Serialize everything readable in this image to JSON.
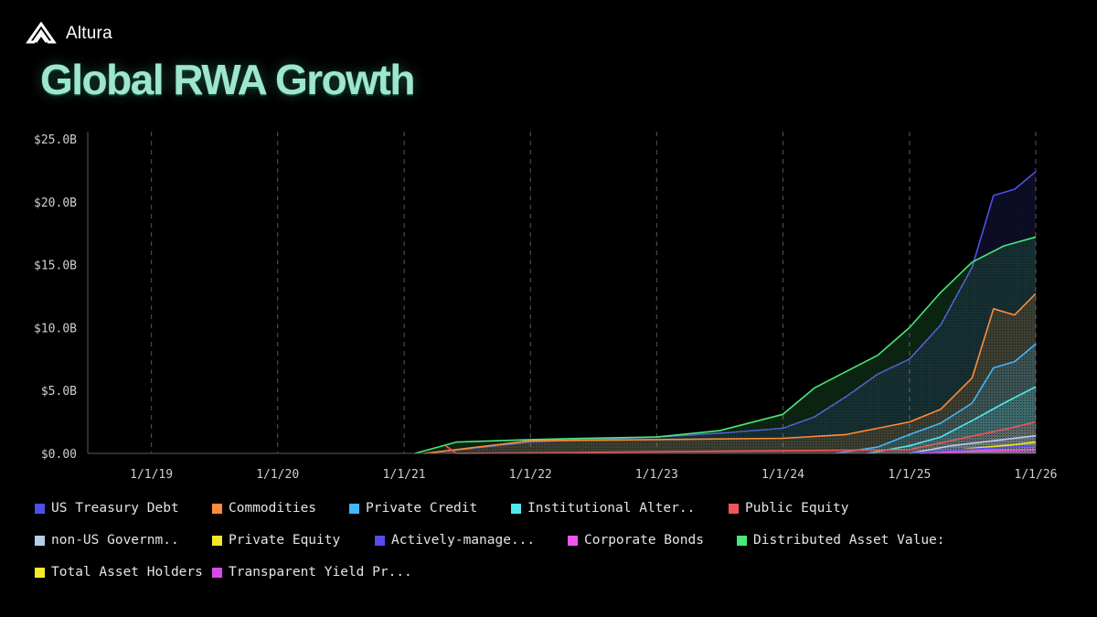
{
  "brand": {
    "name": "Altura",
    "logo_icon": "altura-logo-icon"
  },
  "title": "Global RWA Growth",
  "chart_data": {
    "type": "area",
    "stacked": false,
    "title": "Global RWA Growth",
    "xlabel": "",
    "ylabel": "",
    "x_ticks": [
      "1/1/19",
      "1/1/20",
      "1/1/21",
      "1/1/22",
      "1/1/23",
      "1/1/24",
      "1/1/25",
      "1/1/26"
    ],
    "y_ticks": [
      "$0.00",
      "$5.0B",
      "$10.0B",
      "$15.0B",
      "$20.0B",
      "$25.0B"
    ],
    "ylim": [
      0,
      25
    ],
    "y_unit": "billions USD",
    "xlim": [
      "2018-07-01",
      "2026-01-01"
    ],
    "grid": "vertical dashed",
    "legend_position": "bottom",
    "series": [
      {
        "name": "US Treasury Debt",
        "color": "#4f4fe8",
        "points": [
          [
            "2021-03-01",
            0.0
          ],
          [
            "2022-01-01",
            0.9
          ],
          [
            "2022-06-01",
            1.1
          ],
          [
            "2023-01-01",
            1.3
          ],
          [
            "2023-07-01",
            1.6
          ],
          [
            "2024-01-01",
            2.0
          ],
          [
            "2024-04-01",
            2.9
          ],
          [
            "2024-07-01",
            4.5
          ],
          [
            "2024-10-01",
            6.3
          ],
          [
            "2025-01-01",
            7.5
          ],
          [
            "2025-04-01",
            10.2
          ],
          [
            "2025-07-01",
            14.8
          ],
          [
            "2025-09-01",
            20.5
          ],
          [
            "2025-11-01",
            21.0
          ],
          [
            "2026-01-01",
            22.4
          ]
        ]
      },
      {
        "name": "Commodities",
        "color": "#ff8c3a",
        "points": [
          [
            "2021-03-01",
            0.0
          ],
          [
            "2022-01-01",
            1.0
          ],
          [
            "2023-01-01",
            1.1
          ],
          [
            "2024-01-01",
            1.2
          ],
          [
            "2024-07-01",
            1.5
          ],
          [
            "2025-01-01",
            2.5
          ],
          [
            "2025-04-01",
            3.5
          ],
          [
            "2025-07-01",
            6.0
          ],
          [
            "2025-09-01",
            11.5
          ],
          [
            "2025-11-01",
            11.0
          ],
          [
            "2026-01-01",
            12.7
          ]
        ]
      },
      {
        "name": "Private Credit",
        "color": "#3fb8ff",
        "points": [
          [
            "2024-06-01",
            0.0
          ],
          [
            "2024-10-01",
            0.5
          ],
          [
            "2025-01-01",
            1.5
          ],
          [
            "2025-04-01",
            2.4
          ],
          [
            "2025-07-01",
            4.0
          ],
          [
            "2025-09-01",
            6.8
          ],
          [
            "2025-11-01",
            7.3
          ],
          [
            "2026-01-01",
            8.7
          ]
        ]
      },
      {
        "name": "Institutional Alter..",
        "color": "#52e8f0",
        "points": [
          [
            "2024-09-01",
            0.0
          ],
          [
            "2025-01-01",
            0.6
          ],
          [
            "2025-04-01",
            1.3
          ],
          [
            "2025-07-01",
            2.6
          ],
          [
            "2025-10-01",
            4.0
          ],
          [
            "2026-01-01",
            5.3
          ]
        ]
      },
      {
        "name": "Public Equity",
        "color": "#f0555a",
        "points": [
          [
            "2021-05-01",
            0.6
          ],
          [
            "2021-06-01",
            0.0
          ],
          [
            "2025-01-01",
            0.3
          ],
          [
            "2025-06-01",
            1.2
          ],
          [
            "2025-10-01",
            1.9
          ],
          [
            "2026-01-01",
            2.5
          ]
        ]
      },
      {
        "name": "non-US Governm..",
        "color": "#b4cfe8",
        "points": [
          [
            "2025-01-01",
            0.0
          ],
          [
            "2025-05-01",
            0.6
          ],
          [
            "2025-09-01",
            1.0
          ],
          [
            "2026-01-01",
            1.4
          ]
        ]
      },
      {
        "name": "Private Equity",
        "color": "#f2e626",
        "points": [
          [
            "2025-03-01",
            0.0
          ],
          [
            "2025-07-01",
            0.4
          ],
          [
            "2025-11-01",
            0.7
          ],
          [
            "2026-01-01",
            0.9
          ]
        ]
      },
      {
        "name": "Actively-manage...",
        "color": "#5a4af0",
        "points": [
          [
            "2025-01-01",
            0.0
          ],
          [
            "2025-06-01",
            0.3
          ],
          [
            "2026-01-01",
            0.6
          ]
        ]
      },
      {
        "name": "Corporate Bonds",
        "color": "#ee55ee",
        "points": [
          [
            "2025-02-01",
            0.0
          ],
          [
            "2025-08-01",
            0.2
          ],
          [
            "2026-01-01",
            0.3
          ]
        ]
      },
      {
        "name": "Distributed Asset Value:",
        "color": "#48e878",
        "points": [
          [
            "2021-02-01",
            0.0
          ],
          [
            "2021-06-01",
            0.9
          ],
          [
            "2022-01-01",
            1.1
          ],
          [
            "2022-06-01",
            1.2
          ],
          [
            "2023-01-01",
            1.3
          ],
          [
            "2023-07-01",
            1.8
          ],
          [
            "2024-01-01",
            3.1
          ],
          [
            "2024-04-01",
            5.2
          ],
          [
            "2024-07-01",
            6.5
          ],
          [
            "2024-10-01",
            7.8
          ],
          [
            "2025-01-01",
            10.0
          ],
          [
            "2025-04-01",
            12.8
          ],
          [
            "2025-07-01",
            15.2
          ],
          [
            "2025-10-01",
            16.5
          ],
          [
            "2026-01-01",
            17.2
          ]
        ]
      },
      {
        "name": "Total Asset Holders",
        "color": "#f8ea28",
        "points": []
      },
      {
        "name": "Transparent Yield Pr...",
        "color": "#d848e8",
        "points": []
      }
    ]
  }
}
